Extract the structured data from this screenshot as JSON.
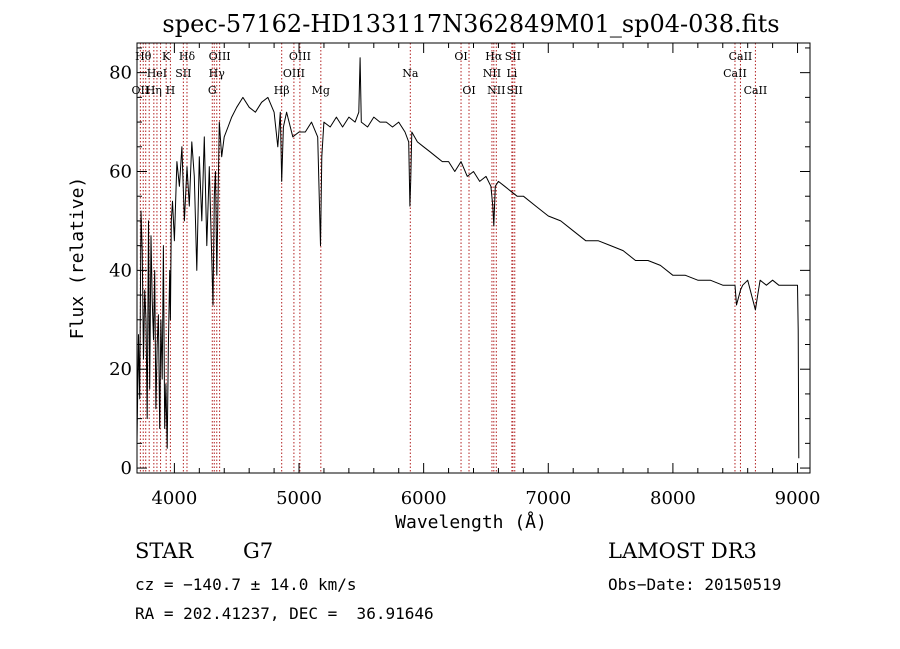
{
  "chart_data": {
    "type": "line",
    "title": "spec-57162-HD133117N362849M01_sp04-038.fits",
    "xlabel": "Wavelength (Å)",
    "ylabel": "Flux (relative)",
    "xlim": [
      3700,
      9100
    ],
    "ylim": [
      -1,
      86
    ],
    "xticks": [
      4000,
      5000,
      6000,
      7000,
      8000,
      9000
    ],
    "yticks": [
      0,
      20,
      40,
      60,
      80
    ],
    "grid": false,
    "line_color": "#000000",
    "marker_color": "#b22222",
    "series": [
      {
        "x": [
          3700,
          3712,
          3722,
          3732,
          3742,
          3752,
          3762,
          3772,
          3782,
          3792,
          3802,
          3812,
          3822,
          3832,
          3842,
          3852,
          3862,
          3872,
          3882,
          3892,
          3902,
          3912,
          3922,
          3932,
          3942,
          3952,
          3962,
          3968,
          3975,
          3985,
          4000,
          4020,
          4040,
          4060,
          4080,
          4101,
          4120,
          4140,
          4160,
          4180,
          4200,
          4220,
          4240,
          4260,
          4280,
          4300,
          4310,
          4320,
          4330,
          4340,
          4360,
          4380,
          4400,
          4430,
          4460,
          4500,
          4550,
          4600,
          4650,
          4700,
          4750,
          4800,
          4830,
          4850,
          4861,
          4875,
          4900,
          4950,
          5000,
          5050,
          5100,
          5150,
          5172,
          5183,
          5200,
          5250,
          5300,
          5350,
          5400,
          5450,
          5480,
          5490,
          5500,
          5550,
          5600,
          5650,
          5700,
          5750,
          5800,
          5850,
          5880,
          5890,
          5896,
          5905,
          5950,
          6000,
          6050,
          6100,
          6150,
          6200,
          6250,
          6300,
          6350,
          6400,
          6450,
          6500,
          6540,
          6555,
          6563,
          6575,
          6600,
          6650,
          6700,
          6750,
          6800,
          6900,
          7000,
          7100,
          7200,
          7300,
          7400,
          7500,
          7600,
          7700,
          7800,
          7900,
          8000,
          8100,
          8200,
          8300,
          8400,
          8498,
          8510,
          8542,
          8560,
          8600,
          8662,
          8680,
          8700,
          8750,
          8800,
          8850,
          8900,
          8950,
          9000,
          9005,
          9010
        ],
        "y": [
          5,
          27,
          14,
          52,
          44,
          22,
          36,
          30,
          10,
          50,
          16,
          47,
          34,
          26,
          40,
          12,
          25,
          31,
          8,
          30,
          18,
          45,
          8,
          17,
          4,
          25,
          40,
          30,
          50,
          54,
          46,
          62,
          57,
          65,
          50,
          61,
          53,
          66,
          59,
          40,
          63,
          50,
          67,
          45,
          61,
          42,
          33,
          55,
          60,
          39,
          70,
          63,
          67,
          69,
          71,
          73,
          75,
          73,
          72,
          74,
          75,
          72,
          65,
          72,
          58,
          69,
          72,
          67,
          68,
          68,
          70,
          67,
          45,
          63,
          70,
          69,
          71,
          69,
          71,
          70,
          72,
          83,
          70,
          69,
          71,
          70,
          70,
          69,
          70,
          68,
          66,
          53,
          58,
          68,
          66,
          65,
          64,
          63,
          62,
          62,
          60,
          62,
          59,
          60,
          58,
          59,
          57,
          53,
          49,
          57,
          58,
          57,
          56,
          55,
          55,
          53,
          51,
          50,
          48,
          46,
          46,
          45,
          44,
          42,
          42,
          41,
          39,
          39,
          38,
          38,
          37,
          37,
          33,
          36,
          37,
          38,
          32,
          35,
          38,
          37,
          38,
          37,
          37,
          37,
          37,
          28,
          2
        ]
      }
    ],
    "line_markers": [
      {
        "wavelength": 3727,
        "label": "OII",
        "row": 3
      },
      {
        "wavelength": 3750,
        "label": "Hθ",
        "row": 1
      },
      {
        "wavelength": 3770,
        "label": "",
        "row": 0
      },
      {
        "wavelength": 3798,
        "label": "",
        "row": 0
      },
      {
        "wavelength": 3835,
        "label": "Hη",
        "row": 3
      },
      {
        "wavelength": 3860,
        "label": "HeI",
        "row": 2
      },
      {
        "wavelength": 3889,
        "label": "",
        "row": 0
      },
      {
        "wavelength": 3934,
        "label": "K",
        "row": 1
      },
      {
        "wavelength": 3968,
        "label": "H",
        "row": 3
      },
      {
        "wavelength": 4072,
        "label": "SII",
        "row": 2
      },
      {
        "wavelength": 4101,
        "label": "Hδ",
        "row": 1
      },
      {
        "wavelength": 4304,
        "label": "G",
        "row": 3
      },
      {
        "wavelength": 4320,
        "label": "",
        "row": 0
      },
      {
        "wavelength": 4340,
        "label": "Hγ",
        "row": 2
      },
      {
        "wavelength": 4363,
        "label": "OIII",
        "row": 1
      },
      {
        "wavelength": 4861,
        "label": "Hβ",
        "row": 3
      },
      {
        "wavelength": 4959,
        "label": "OIII",
        "row": 2
      },
      {
        "wavelength": 5007,
        "label": "OIII",
        "row": 1
      },
      {
        "wavelength": 5175,
        "label": "Mg",
        "row": 3
      },
      {
        "wavelength": 5893,
        "label": "Na",
        "row": 2
      },
      {
        "wavelength": 6300,
        "label": "OI",
        "row": 1
      },
      {
        "wavelength": 6364,
        "label": "OI",
        "row": 3
      },
      {
        "wavelength": 6548,
        "label": "NII",
        "row": 2
      },
      {
        "wavelength": 6563,
        "label": "Hα",
        "row": 1
      },
      {
        "wavelength": 6583,
        "label": "NII",
        "row": 3
      },
      {
        "wavelength": 6708,
        "label": "Li",
        "row": 2
      },
      {
        "wavelength": 6716,
        "label": "SII",
        "row": 1
      },
      {
        "wavelength": 6731,
        "label": "SII",
        "row": 3
      },
      {
        "wavelength": 8498,
        "label": "CaII",
        "row": 2
      },
      {
        "wavelength": 8542,
        "label": "CaII",
        "row": 1
      },
      {
        "wavelength": 8662,
        "label": "CaII",
        "row": 3
      }
    ]
  },
  "info": {
    "object_class": "STAR",
    "subclass": "G7",
    "survey": "LAMOST DR3",
    "cz": "cz = −140.7 ± 14.0 km/s",
    "obs_date": "Obs−Date: 20150519",
    "radec": "RA = 202.41237, DEC =  36.91646"
  }
}
